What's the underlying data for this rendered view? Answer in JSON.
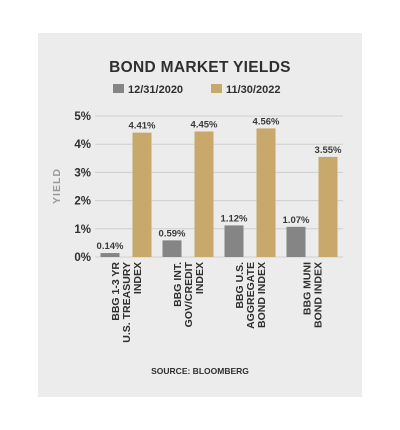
{
  "chart_data": {
    "type": "bar",
    "title": "BOND MARKET YIELDS",
    "ylabel": "YIELD",
    "xlabel": "",
    "ylim": [
      0,
      5
    ],
    "yticks": [
      "0%",
      "1%",
      "2%",
      "3%",
      "4%",
      "5%"
    ],
    "grid": true,
    "legend_position": "top",
    "categories": [
      [
        "BBG 1-3 YR",
        "U.S. TREASURY",
        "INDEX"
      ],
      [
        "BBG INT.",
        "GOV/CREDIT",
        "INDEX"
      ],
      [
        "BBG U.S.",
        "AGGREGATE",
        "BOND INDEX"
      ],
      [
        "BBG MUNI",
        "BOND INDEX"
      ]
    ],
    "series": [
      {
        "name": "12/31/2020",
        "color": "#858585",
        "values": [
          0.14,
          0.59,
          1.12,
          1.07
        ],
        "labels": [
          "0.14%",
          "0.59%",
          "1.12%",
          "1.07%"
        ]
      },
      {
        "name": "11/30/2022",
        "color": "#c9a86b",
        "values": [
          4.41,
          4.45,
          4.56,
          3.55
        ],
        "labels": [
          "4.41%",
          "4.45%",
          "4.56%",
          "3.55%"
        ]
      }
    ],
    "source": "SOURCE: BLOOMBERG"
  }
}
